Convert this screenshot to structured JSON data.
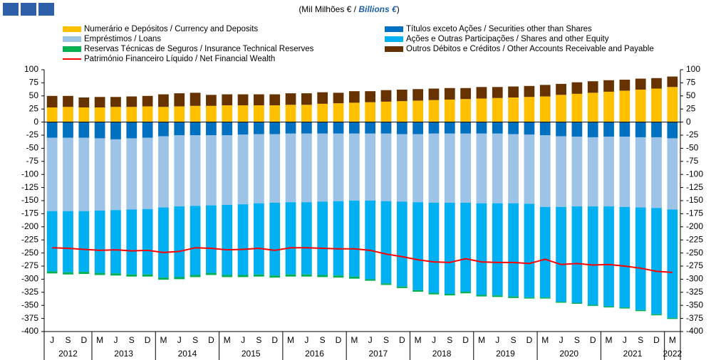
{
  "chart_data": {
    "type": "stacked-bar-line",
    "title_parts": [
      "(Mil Milhões € / ",
      "Billions €",
      ")"
    ],
    "categories": [
      "J",
      "S",
      "D",
      "M",
      "J",
      "S",
      "D",
      "M",
      "J",
      "S",
      "D",
      "M",
      "J",
      "S",
      "D",
      "M",
      "J",
      "S",
      "D",
      "M",
      "J",
      "S",
      "D",
      "M",
      "J",
      "S",
      "D",
      "M",
      "J",
      "S",
      "D",
      "M",
      "J",
      "S",
      "D",
      "M",
      "J",
      "S",
      "D",
      "M"
    ],
    "years": [
      "2012",
      "2013",
      "2014",
      "2015",
      "2016",
      "2017",
      "2018",
      "2019",
      "2020",
      "2021",
      "2022"
    ],
    "ylim": [
      -400,
      100
    ],
    "yticks": [
      100,
      75,
      50,
      25,
      0,
      -25,
      -50,
      -75,
      -100,
      -125,
      -150,
      -175,
      -200,
      -225,
      -250,
      -275,
      -300,
      -325,
      -350,
      -375,
      -400
    ],
    "y2lim": [
      -400,
      100
    ],
    "y2ticks": [
      100,
      75,
      50,
      25,
      0,
      -25,
      -50,
      -75,
      -100,
      -125,
      -150,
      -175,
      -200,
      -225,
      -250,
      -275,
      -300,
      -325,
      -350,
      -375,
      -400
    ],
    "grid": false,
    "series": [
      {
        "name": "Numerário e Depósitos / Currency and Deposits",
        "color": "#FFC000",
        "kind": "bar",
        "values": [
          28,
          29,
          28,
          28,
          29,
          29,
          30,
          29,
          30,
          31,
          31,
          32,
          32,
          32,
          32,
          33,
          33,
          35,
          36,
          37,
          38,
          39,
          40,
          41,
          42,
          43,
          44,
          45,
          46,
          47,
          48,
          49,
          52,
          54,
          56,
          58,
          60,
          62,
          64,
          67
        ]
      },
      {
        "name": "Títulos exceto Ações / Securities other than Shares",
        "color": "#0070C0",
        "kind": "bar",
        "values": [
          -30,
          -30,
          -30,
          -31,
          -33,
          -31,
          -30,
          -27,
          -25,
          -25,
          -25,
          -25,
          -24,
          -23,
          -23,
          -22,
          -22,
          -22,
          -22,
          -22,
          -22,
          -22,
          -23,
          -23,
          -22,
          -22,
          -22,
          -22,
          -22,
          -23,
          -24,
          -25,
          -27,
          -28,
          -29,
          -28,
          -28,
          -29,
          -29,
          -31
        ]
      },
      {
        "name": "Empréstimos / Loans",
        "color": "#9DC3E6",
        "kind": "bar",
        "values": [
          -140,
          -140,
          -140,
          -138,
          -135,
          -136,
          -136,
          -136,
          -136,
          -135,
          -134,
          -133,
          -133,
          -132,
          -131,
          -131,
          -131,
          -130,
          -129,
          -128,
          -128,
          -129,
          -129,
          -130,
          -132,
          -132,
          -132,
          -133,
          -133,
          -132,
          -132,
          -137,
          -135,
          -133,
          -132,
          -133,
          -134,
          -134,
          -135,
          -136
        ]
      },
      {
        "name": "Ações e Outras Participações / Shares and other Equity",
        "color": "#00B0F0",
        "kind": "bar",
        "values": [
          -115,
          -117,
          -116,
          -119,
          -121,
          -124,
          -125,
          -134,
          -135,
          -132,
          -129,
          -134,
          -135,
          -136,
          -139,
          -138,
          -138,
          -140,
          -142,
          -145,
          -150,
          -157,
          -162,
          -168,
          -172,
          -174,
          -170,
          -175,
          -176,
          -178,
          -179,
          -173,
          -181,
          -184,
          -188,
          -191,
          -192,
          -196,
          -203,
          -207
        ]
      },
      {
        "name": "Reservas Técnicas de Seguros / Insurance Technical Reserves",
        "color": "#00B050",
        "kind": "bar",
        "values": [
          -4,
          -4,
          -4,
          -4,
          -4,
          -4,
          -4,
          -4,
          -4,
          -4,
          -4,
          -4,
          -4,
          -4,
          -4,
          -4,
          -4,
          -4,
          -4,
          -4,
          -3,
          -3,
          -3,
          -3,
          -3,
          -3,
          -3,
          -3,
          -3,
          -3,
          -2,
          -2,
          -2,
          -2,
          -2,
          -2,
          -2,
          -2,
          -2,
          -2
        ]
      },
      {
        "name": "Outros Débitos e Créditos / Other Accounts Receivable and Payable",
        "color": "#663300",
        "kind": "bar",
        "values": [
          22,
          21,
          19,
          20,
          19,
          20,
          20,
          24,
          25,
          25,
          21,
          21,
          21,
          21,
          21,
          22,
          22,
          22,
          20,
          22,
          21,
          22,
          22,
          22,
          22,
          22,
          21,
          22,
          21,
          21,
          21,
          22,
          21,
          22,
          22,
          22,
          21,
          21,
          20,
          20
        ]
      },
      {
        "name": "Património Financeiro Líquido / Net Financial Wealth",
        "color": "#FF0000",
        "kind": "line",
        "values": [
          -240,
          -241,
          -243,
          -245,
          -244,
          -246,
          -245,
          -249,
          -247,
          -240,
          -241,
          -244,
          -243,
          -241,
          -245,
          -240,
          -240,
          -241,
          -242,
          -242,
          -245,
          -252,
          -257,
          -263,
          -267,
          -268,
          -261,
          -267,
          -268,
          -268,
          -270,
          -262,
          -272,
          -270,
          -273,
          -272,
          -275,
          -279,
          -285,
          -287
        ]
      }
    ]
  }
}
